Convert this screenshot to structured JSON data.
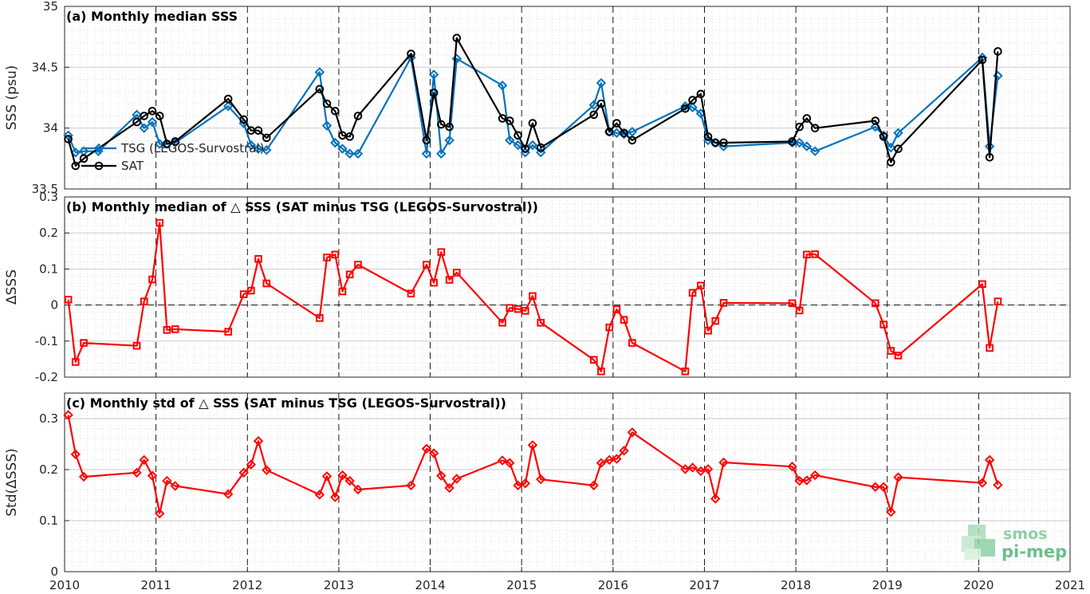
{
  "chart_data": [
    {
      "type": "line",
      "title": "(a) Monthly median SSS",
      "ylabel": "SSS (psu)",
      "xlim": [
        2010,
        2021
      ],
      "ylim": [
        33.5,
        35
      ],
      "yticks": [
        "33.5",
        "34",
        "34.5",
        "35"
      ],
      "xticks": [
        "2010",
        "2011",
        "2012",
        "2013",
        "2014",
        "2015",
        "2016",
        "2017",
        "2018",
        "2019",
        "2020",
        "2021"
      ],
      "legend_placement": "middle-left",
      "series": [
        {
          "name": "TSG (LEGOS-Survostral)",
          "color": "#0072BD",
          "marker": "diamond",
          "x": [
            2010.04,
            2010.12,
            2010.21,
            2010.37,
            2010.79,
            2010.87,
            2010.96,
            2011.04,
            2011.12,
            2011.21,
            2011.79,
            2011.96,
            2012.04,
            2012.12,
            2012.21,
            2012.79,
            2012.87,
            2012.96,
            2013.04,
            2013.12,
            2013.21,
            2013.79,
            2013.96,
            2014.04,
            2014.12,
            2014.21,
            2014.29,
            2014.79,
            2014.87,
            2014.96,
            2015.04,
            2015.12,
            2015.21,
            2015.79,
            2015.87,
            2015.96,
            2016.04,
            2016.12,
            2016.21,
            2016.79,
            2016.87,
            2016.96,
            2017.04,
            2017.12,
            2017.21,
            2017.96,
            2018.04,
            2018.12,
            2018.21,
            2018.87,
            2018.96,
            2019.04,
            2019.12,
            2020.04,
            2020.12,
            2020.21
          ],
          "y": [
            33.94,
            33.8,
            33.81,
            33.81,
            34.11,
            34.0,
            34.05,
            33.87,
            33.87,
            33.88,
            34.18,
            34.04,
            33.86,
            33.83,
            33.82,
            34.46,
            34.02,
            33.88,
            33.83,
            33.79,
            33.79,
            34.58,
            33.79,
            34.44,
            33.79,
            33.9,
            34.57,
            34.35,
            33.9,
            33.86,
            33.8,
            33.86,
            33.8,
            34.19,
            34.37,
            33.97,
            33.96,
            33.95,
            33.97,
            34.18,
            34.17,
            34.12,
            33.9,
            33.88,
            33.85,
            33.88,
            33.88,
            33.85,
            33.81,
            34.01,
            33.94,
            33.84,
            33.96,
            34.58,
            33.85,
            34.43
          ]
        },
        {
          "name": "SAT",
          "color": "#000000",
          "marker": "circle",
          "x": [
            2010.04,
            2010.12,
            2010.21,
            2010.79,
            2010.87,
            2010.96,
            2011.04,
            2011.12,
            2011.21,
            2011.79,
            2011.96,
            2012.04,
            2012.12,
            2012.21,
            2012.79,
            2012.87,
            2012.96,
            2013.04,
            2013.12,
            2013.21,
            2013.79,
            2013.96,
            2014.04,
            2014.12,
            2014.21,
            2014.29,
            2014.79,
            2014.87,
            2014.96,
            2015.04,
            2015.12,
            2015.21,
            2015.79,
            2015.87,
            2015.96,
            2016.04,
            2016.12,
            2016.21,
            2016.79,
            2016.87,
            2016.96,
            2017.04,
            2017.12,
            2017.21,
            2017.96,
            2018.04,
            2018.12,
            2018.21,
            2018.87,
            2018.96,
            2019.04,
            2019.12,
            2020.04,
            2020.12,
            2020.21
          ],
          "y": [
            33.91,
            33.69,
            33.75,
            34.05,
            34.1,
            34.14,
            34.1,
            33.87,
            33.89,
            34.24,
            34.07,
            33.98,
            33.98,
            33.92,
            34.32,
            34.2,
            34.14,
            33.94,
            33.93,
            34.1,
            34.61,
            33.9,
            34.29,
            34.03,
            34.01,
            34.74,
            34.08,
            34.06,
            33.94,
            33.83,
            34.04,
            33.84,
            34.11,
            34.2,
            33.97,
            34.04,
            33.96,
            33.9,
            34.16,
            34.23,
            34.28,
            33.93,
            33.88,
            33.88,
            33.89,
            34.01,
            34.08,
            34.0,
            34.06,
            33.93,
            33.72,
            33.83,
            34.56,
            33.76,
            34.63
          ]
        }
      ]
    },
    {
      "type": "line",
      "title": "(b) Monthly median of △ SSS (SAT minus TSG (LEGOS-Survostral))",
      "ylabel": "ΔSSS",
      "xlim": [
        2010,
        2021
      ],
      "ylim": [
        -0.2,
        0.3
      ],
      "yticks": [
        "-0.2",
        "-0.1",
        "0",
        "0.1",
        "0.2",
        "0.3"
      ],
      "xticks": [
        "2010",
        "2011",
        "2012",
        "2013",
        "2014",
        "2015",
        "2016",
        "2017",
        "2018",
        "2019",
        "2020",
        "2021"
      ],
      "reference_line": 0,
      "series": [
        {
          "color": "#FF0000",
          "marker": "square",
          "x": [
            2010.04,
            2010.12,
            2010.21,
            2010.79,
            2010.87,
            2010.96,
            2011.04,
            2011.12,
            2011.21,
            2011.79,
            2011.96,
            2012.04,
            2012.12,
            2012.21,
            2012.79,
            2012.87,
            2012.96,
            2013.04,
            2013.12,
            2013.21,
            2013.79,
            2013.96,
            2014.04,
            2014.12,
            2014.21,
            2014.29,
            2014.79,
            2014.87,
            2014.96,
            2015.04,
            2015.12,
            2015.21,
            2015.79,
            2015.87,
            2015.96,
            2016.04,
            2016.12,
            2016.21,
            2016.79,
            2016.87,
            2016.96,
            2017.04,
            2017.12,
            2017.21,
            2017.96,
            2018.04,
            2018.12,
            2018.21,
            2018.87,
            2018.96,
            2019.04,
            2019.12,
            2020.04,
            2020.12,
            2020.21
          ],
          "y": [
            0.015,
            -0.158,
            -0.105,
            -0.113,
            0.01,
            0.071,
            0.228,
            -0.069,
            -0.067,
            -0.074,
            0.03,
            0.04,
            0.128,
            0.06,
            -0.036,
            0.132,
            0.14,
            0.038,
            0.085,
            0.112,
            0.032,
            0.112,
            0.062,
            0.147,
            0.07,
            0.09,
            -0.049,
            -0.008,
            -0.011,
            -0.016,
            0.025,
            -0.049,
            -0.152,
            -0.184,
            -0.062,
            -0.012,
            -0.041,
            -0.105,
            -0.184,
            0.034,
            0.054,
            -0.071,
            -0.044,
            0.006,
            0.005,
            -0.015,
            0.14,
            0.141,
            0.005,
            -0.054,
            -0.127,
            -0.14,
            0.058,
            -0.119,
            0.01
          ]
        }
      ]
    },
    {
      "type": "line",
      "title": "(c) Monthly std of △ SSS (SAT minus TSG (LEGOS-Survostral))",
      "ylabel": "Std(ΔSSS)",
      "xlim": [
        2010,
        2021
      ],
      "ylim": [
        0,
        0.35
      ],
      "yticks": [
        "0",
        "0.1",
        "0.2",
        "0.3"
      ],
      "xticks": [
        "2010",
        "2011",
        "2012",
        "2013",
        "2014",
        "2015",
        "2016",
        "2017",
        "2018",
        "2019",
        "2020",
        "2021"
      ],
      "series": [
        {
          "color": "#FF0000",
          "marker": "diamond",
          "x": [
            2010.04,
            2010.12,
            2010.21,
            2010.79,
            2010.87,
            2010.96,
            2011.04,
            2011.12,
            2011.21,
            2011.79,
            2011.96,
            2012.04,
            2012.12,
            2012.21,
            2012.79,
            2012.87,
            2012.96,
            2013.04,
            2013.12,
            2013.21,
            2013.79,
            2013.96,
            2014.04,
            2014.12,
            2014.21,
            2014.29,
            2014.79,
            2014.87,
            2014.96,
            2015.04,
            2015.12,
            2015.21,
            2015.79,
            2015.87,
            2015.96,
            2016.04,
            2016.12,
            2016.21,
            2016.79,
            2016.87,
            2016.96,
            2017.04,
            2017.12,
            2017.21,
            2017.96,
            2018.04,
            2018.12,
            2018.21,
            2018.87,
            2018.96,
            2019.04,
            2019.12,
            2020.04,
            2020.12,
            2020.21
          ],
          "y": [
            0.307,
            0.23,
            0.186,
            0.194,
            0.219,
            0.188,
            0.114,
            0.178,
            0.168,
            0.152,
            0.194,
            0.21,
            0.256,
            0.199,
            0.151,
            0.187,
            0.146,
            0.189,
            0.178,
            0.161,
            0.169,
            0.241,
            0.232,
            0.188,
            0.164,
            0.182,
            0.218,
            0.213,
            0.169,
            0.173,
            0.248,
            0.181,
            0.169,
            0.213,
            0.219,
            0.221,
            0.237,
            0.273,
            0.201,
            0.204,
            0.197,
            0.201,
            0.143,
            0.214,
            0.206,
            0.178,
            0.179,
            0.189,
            0.166,
            0.166,
            0.117,
            0.185,
            0.174,
            0.219,
            0.17
          ]
        }
      ]
    }
  ],
  "logo": {
    "line1": "smos",
    "line2": "pi-mep"
  }
}
